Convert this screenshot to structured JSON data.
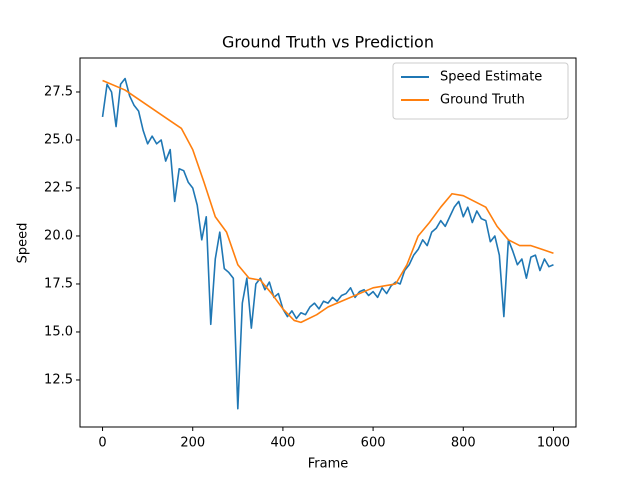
{
  "chart_data": {
    "type": "line",
    "title": "Ground Truth vs Prediction",
    "x_label": "Frame",
    "y_label": "Speed",
    "xlim": [
      -50,
      1050
    ],
    "ylim": [
      10.05,
      29.27
    ],
    "xticks": [
      0,
      200,
      400,
      600,
      800,
      1000
    ],
    "yticks": [
      12.5,
      {
        "value": 15,
        "label": "15.0"
      },
      17.5,
      {
        "value": 20,
        "label": "20.0"
      },
      22.5,
      {
        "value": 25,
        "label": "25.0"
      },
      27.5
    ],
    "legend": "upper right",
    "series": [
      {
        "name": "Speed Estimate",
        "color": "#1f77b4",
        "x": [
          0,
          10,
          20,
          30,
          40,
          50,
          60,
          70,
          80,
          90,
          100,
          110,
          120,
          130,
          140,
          150,
          160,
          170,
          180,
          190,
          200,
          210,
          220,
          230,
          240,
          250,
          260,
          270,
          280,
          290,
          300,
          310,
          320,
          330,
          340,
          350,
          360,
          370,
          380,
          390,
          400,
          410,
          420,
          430,
          440,
          450,
          460,
          470,
          480,
          490,
          500,
          510,
          520,
          530,
          540,
          550,
          560,
          570,
          580,
          590,
          600,
          610,
          620,
          630,
          640,
          650,
          660,
          670,
          680,
          690,
          700,
          710,
          720,
          730,
          740,
          750,
          760,
          770,
          780,
          790,
          800,
          810,
          820,
          830,
          840,
          850,
          860,
          870,
          880,
          890,
          900,
          910,
          920,
          930,
          940,
          950,
          960,
          970,
          980,
          990,
          1000
        ],
        "values": [
          26.2,
          27.9,
          27.5,
          25.7,
          27.9,
          28.2,
          27.3,
          26.8,
          26.5,
          25.5,
          24.8,
          25.2,
          24.8,
          25.0,
          23.9,
          24.5,
          21.8,
          23.5,
          23.4,
          22.8,
          22.5,
          21.6,
          19.8,
          21.0,
          15.4,
          18.8,
          20.2,
          18.3,
          18.1,
          17.8,
          11.0,
          16.5,
          17.8,
          15.2,
          17.5,
          17.8,
          17.2,
          17.6,
          16.8,
          17.0,
          16.2,
          15.8,
          16.1,
          15.7,
          16.0,
          15.9,
          16.3,
          16.5,
          16.2,
          16.6,
          16.5,
          16.8,
          16.6,
          16.9,
          17.0,
          17.3,
          16.8,
          17.1,
          17.2,
          16.9,
          17.1,
          16.8,
          17.3,
          17.0,
          17.4,
          17.6,
          17.5,
          18.2,
          18.5,
          19.0,
          19.3,
          19.8,
          19.5,
          20.2,
          20.4,
          20.8,
          20.5,
          21.0,
          21.5,
          21.8,
          21.0,
          21.5,
          20.7,
          21.3,
          20.9,
          20.8,
          19.7,
          20.0,
          19.0,
          15.8,
          19.8,
          19.2,
          18.5,
          18.8,
          17.8,
          18.9,
          19.0,
          18.2,
          18.8,
          18.4,
          18.5
        ]
      },
      {
        "name": "Ground Truth",
        "color": "#ff7f0e",
        "x": [
          0,
          50,
          100,
          150,
          175,
          200,
          225,
          250,
          275,
          300,
          325,
          350,
          375,
          400,
          425,
          440,
          475,
          500,
          550,
          600,
          650,
          675,
          700,
          725,
          750,
          775,
          800,
          825,
          850,
          875,
          900,
          925,
          950,
          975,
          1000
        ],
        "values": [
          28.1,
          27.6,
          26.8,
          26.0,
          25.6,
          24.5,
          22.8,
          21.0,
          20.2,
          18.5,
          17.8,
          17.7,
          17.0,
          16.2,
          15.6,
          15.5,
          15.9,
          16.3,
          16.8,
          17.3,
          17.5,
          18.5,
          20.0,
          20.7,
          21.5,
          22.2,
          22.1,
          21.8,
          21.5,
          20.5,
          19.8,
          19.5,
          19.5,
          19.3,
          19.1
        ]
      }
    ]
  }
}
